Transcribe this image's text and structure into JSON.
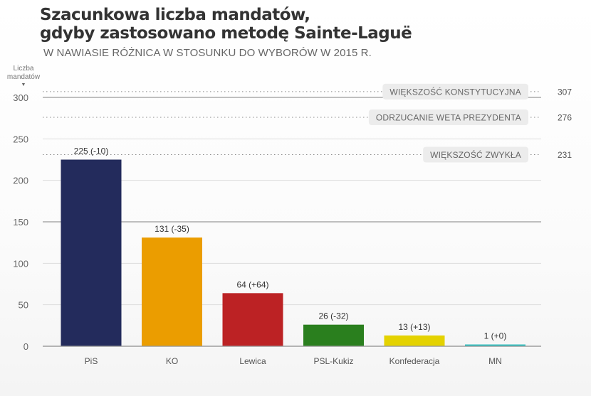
{
  "chart_data": {
    "type": "bar",
    "title_lines": [
      "Szacunkowa liczba mandatów,",
      "gdyby zastosowano metodę Sainte-Laguë"
    ],
    "subtitle": "W NAWIASIE RÓŻNICA W STOSUNKU DO WYBORÓW W 2015 R.",
    "ylabel": "Liczba mandatów",
    "ylabel_arrow": "▼",
    "xlabel": "",
    "ylim": [
      0,
      300
    ],
    "yticks": [
      0,
      50,
      100,
      150,
      200,
      250,
      300
    ],
    "grid": true,
    "categories": [
      "PiS",
      "KO",
      "Lewica",
      "PSL-Kukiz",
      "Konfederacja",
      "MN"
    ],
    "values": [
      225,
      131,
      64,
      26,
      13,
      1
    ],
    "changes": [
      "-10",
      "-35",
      "+64",
      "-32",
      "+13",
      "+0"
    ],
    "data_labels": [
      "225 (-10)",
      "131 (-35)",
      "64 (+64)",
      "26 (-32)",
      "13 (+13)",
      "1 (+0)"
    ],
    "colors": [
      "#232b5c",
      "#eb9d00",
      "#bc2224",
      "#2a7f1e",
      "#e4d200",
      "#2fbfbf"
    ],
    "thresholds": [
      {
        "label": "WIĘKSZOŚĆ KONSTYTUCYJNA",
        "value": 307,
        "value_label": "307"
      },
      {
        "label": "ODRZUCANIE WETA PREZYDENTA",
        "value": 276,
        "value_label": "276"
      },
      {
        "label": "WIĘKSZOŚĆ ZWYKŁA",
        "value": 231,
        "value_label": "231"
      }
    ]
  }
}
